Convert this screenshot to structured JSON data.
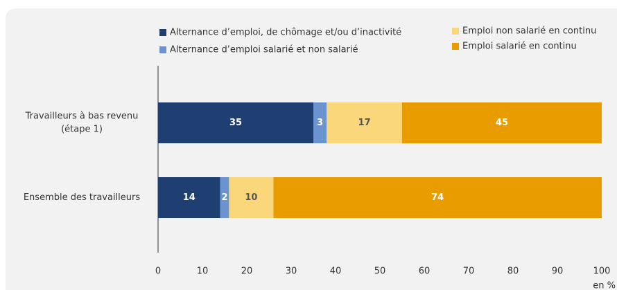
{
  "chart_data": {
    "type": "stacked-bar-horizontal",
    "categories": [
      [
        "Travailleurs à bas revenu",
        "(étape 1)"
      ],
      [
        "Ensemble des travailleurs"
      ]
    ],
    "series": [
      {
        "name": "Alternance d’emploi, de chômage et/ou d’inactivité",
        "color": "#1f3f73",
        "values": [
          35,
          14
        ]
      },
      {
        "name": "Alternance d’emploi salarié et non salarié",
        "color": "#6b93cf",
        "values": [
          3,
          2
        ]
      },
      {
        "name": "Emploi non salarié en continu",
        "color": "#f9d77a",
        "values": [
          17,
          10
        ]
      },
      {
        "name": "Emploi salarié en continu",
        "color": "#e89c00",
        "values": [
          45,
          74
        ]
      }
    ],
    "xlim": [
      0,
      100
    ],
    "xticks": [
      0,
      10,
      20,
      30,
      40,
      50,
      60,
      70,
      80,
      90,
      100
    ],
    "xlabel": "en %",
    "grid": false
  }
}
